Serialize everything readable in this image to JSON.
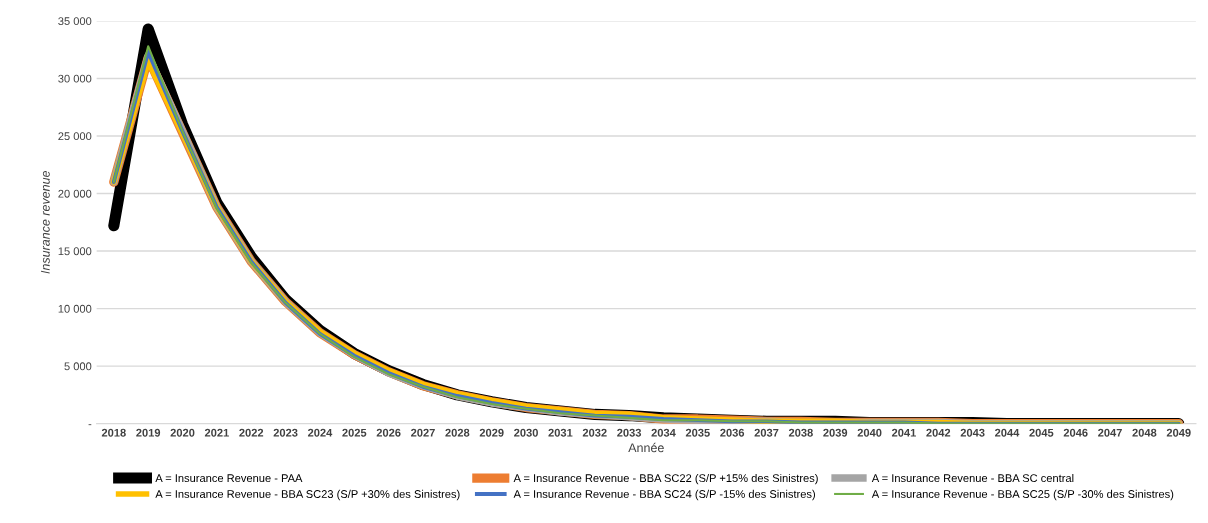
{
  "chart_data": {
    "type": "line",
    "xlabel": "Année",
    "ylabel": "Insurance revenue",
    "categories": [
      "2018",
      "2019",
      "2020",
      "2021",
      "2022",
      "2023",
      "2024",
      "2025",
      "2026",
      "2027",
      "2028",
      "2029",
      "2030",
      "2031",
      "2032",
      "2033",
      "2034",
      "2035",
      "2036",
      "2037",
      "2038",
      "2039",
      "2040",
      "2041",
      "2042",
      "2043",
      "2044",
      "2045",
      "2046",
      "2047",
      "2048",
      "2049"
    ],
    "ylim": [
      0,
      35000
    ],
    "yticks": [
      {
        "value": 0,
        "label": "-"
      },
      {
        "value": 5000,
        "label": "5 000"
      },
      {
        "value": 10000,
        "label": "10 000"
      },
      {
        "value": 15000,
        "label": "15 000"
      },
      {
        "value": 20000,
        "label": "20 000"
      },
      {
        "value": 25000,
        "label": "25 000"
      },
      {
        "value": 30000,
        "label": "30 000"
      },
      {
        "value": 35000,
        "label": "35 000"
      }
    ],
    "grid": "y",
    "legend": "bottom",
    "marker": "none",
    "line_style": "solid",
    "series": [
      {
        "name": "A = Insurance Revenue - PAA",
        "color": "#000000",
        "values": [
          17200,
          34300,
          26000,
          19200,
          14500,
          10800,
          8100,
          6100,
          4600,
          3400,
          2500,
          1900,
          1400,
          1100,
          800,
          700,
          500,
          400,
          300,
          200,
          200,
          200,
          100,
          100,
          100,
          100,
          0,
          0,
          0,
          0,
          0,
          0
        ]
      },
      {
        "name": "A = Insurance Revenue - BBA SC22 (S/P +15% des Sinistres)",
        "color": "#ed7d31",
        "values": [
          21000,
          31800,
          25300,
          18800,
          14100,
          10600,
          7900,
          6000,
          4500,
          3300,
          2500,
          1900,
          1400,
          1100,
          800,
          700,
          400,
          400,
          300,
          200,
          200,
          100,
          100,
          100,
          100,
          0,
          0,
          0,
          0,
          0,
          0,
          0
        ]
      },
      {
        "name": "A = Insurance Revenue - BBA SC central",
        "color": "#a5a5a5",
        "values": [
          21000,
          32000,
          25400,
          18800,
          14100,
          10600,
          7900,
          6000,
          4400,
          3300,
          2400,
          1800,
          1400,
          1000,
          800,
          600,
          400,
          300,
          200,
          200,
          100,
          100,
          100,
          100,
          100,
          0,
          0,
          0,
          0,
          0,
          0,
          0
        ]
      },
      {
        "name": "A = Insurance Revenue - BBA SC23 (S/P +30% des Sinistres)",
        "color": "#ffc000",
        "values": [
          21000,
          31500,
          25200,
          18800,
          14100,
          10600,
          8000,
          6100,
          4600,
          3400,
          2600,
          2000,
          1500,
          1200,
          900,
          800,
          500,
          400,
          300,
          200,
          200,
          200,
          100,
          100,
          100,
          0,
          0,
          0,
          0,
          0,
          0,
          0
        ]
      },
      {
        "name": "A = Insurance Revenue - BBA SC24 (S/P -15% des Sinistres)",
        "color": "#4472c4",
        "values": [
          21000,
          32300,
          25400,
          18800,
          14100,
          10500,
          7800,
          5900,
          4400,
          3200,
          2400,
          1800,
          1300,
          1000,
          700,
          600,
          400,
          300,
          200,
          200,
          100,
          100,
          100,
          100,
          0,
          0,
          0,
          0,
          0,
          0,
          0,
          0
        ]
      },
      {
        "name": "A = Insurance Revenue - BBA SC25 (S/P -30% des Sinistres)",
        "color": "#70ad47",
        "values": [
          21000,
          32800,
          25400,
          18700,
          14000,
          10500,
          7800,
          5800,
          4300,
          3200,
          2300,
          1700,
          1300,
          900,
          700,
          500,
          300,
          300,
          200,
          200,
          100,
          100,
          100,
          100,
          0,
          0,
          0,
          0,
          0,
          0,
          0,
          0
        ]
      }
    ]
  }
}
